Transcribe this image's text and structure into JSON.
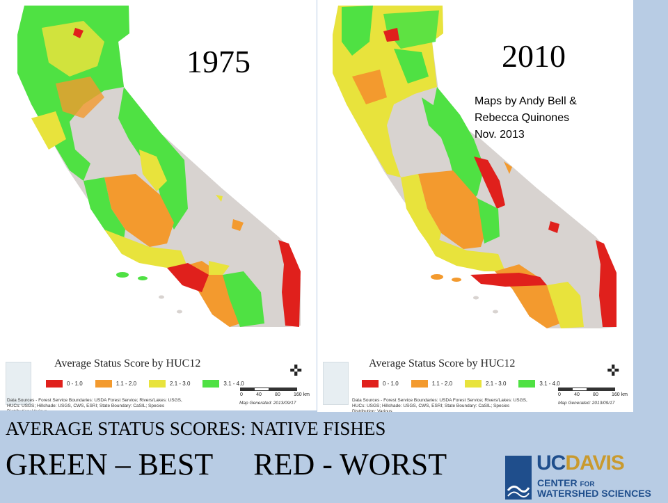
{
  "maps": [
    {
      "year": "1975",
      "legend_title": "Average Status Score by HUC12",
      "legend": [
        {
          "label": "0 - 1.0",
          "color": "#e0201c"
        },
        {
          "label": "1.1 - 2.0",
          "color": "#f39a2e"
        },
        {
          "label": "2.1 - 3.0",
          "color": "#e8e33c"
        },
        {
          "label": "3.1 - 4.0",
          "color": "#4fe143"
        }
      ],
      "sources": "Data Sources - Forest Service Boundaries: USDA Forest Service; Rivers/Lakes: USGS, HUCs: USGS; Hillshade: USGS, CWS, ESRI; State Boundary: CaSIL; Species Distribution: Various",
      "scale_labels": [
        "0",
        "40",
        "80",
        "160 km"
      ],
      "map_generated": "Map Generated: 2013/09/17",
      "north_label": "N"
    },
    {
      "year": "2010",
      "credit": [
        "Maps by Andy Bell &",
        "Rebecca Quinones",
        "Nov. 2013"
      ],
      "legend_title": "Average Status Score by HUC12",
      "legend": [
        {
          "label": "0 - 1.0",
          "color": "#e0201c"
        },
        {
          "label": "1.1 - 2.0",
          "color": "#f39a2e"
        },
        {
          "label": "2.1 - 3.0",
          "color": "#e8e33c"
        },
        {
          "label": "3.1 - 4.0",
          "color": "#4fe143"
        }
      ],
      "sources": "Data Sources - Forest Service Boundaries: USDA Forest Service; Rivers/Lakes: USGS, HUCs: USGS; Hillshade: USGS, CWS, ESRI; State Boundary: CaSIL; Species Distribution: Various",
      "scale_labels": [
        "0",
        "40",
        "80",
        "160 km"
      ],
      "map_generated": "Map Generated: 2013/09/17",
      "north_label": "N"
    }
  ],
  "caption": {
    "line1": "AVERAGE STATUS SCORES: NATIVE FISHES",
    "best": "GREEN – BEST",
    "worst": "RED - WORST"
  },
  "logo": {
    "uc": "UC",
    "davis": "DAVIS",
    "line1_a": "CENTER ",
    "line1_b": "FOR",
    "line2": "WATERSHED SCIENCES"
  },
  "colors": {
    "background": "#b8cce4",
    "land": "#d8d3d0",
    "red": "#e0201c",
    "orange": "#f39a2e",
    "yellow": "#e8e33c",
    "green": "#4fe143"
  }
}
